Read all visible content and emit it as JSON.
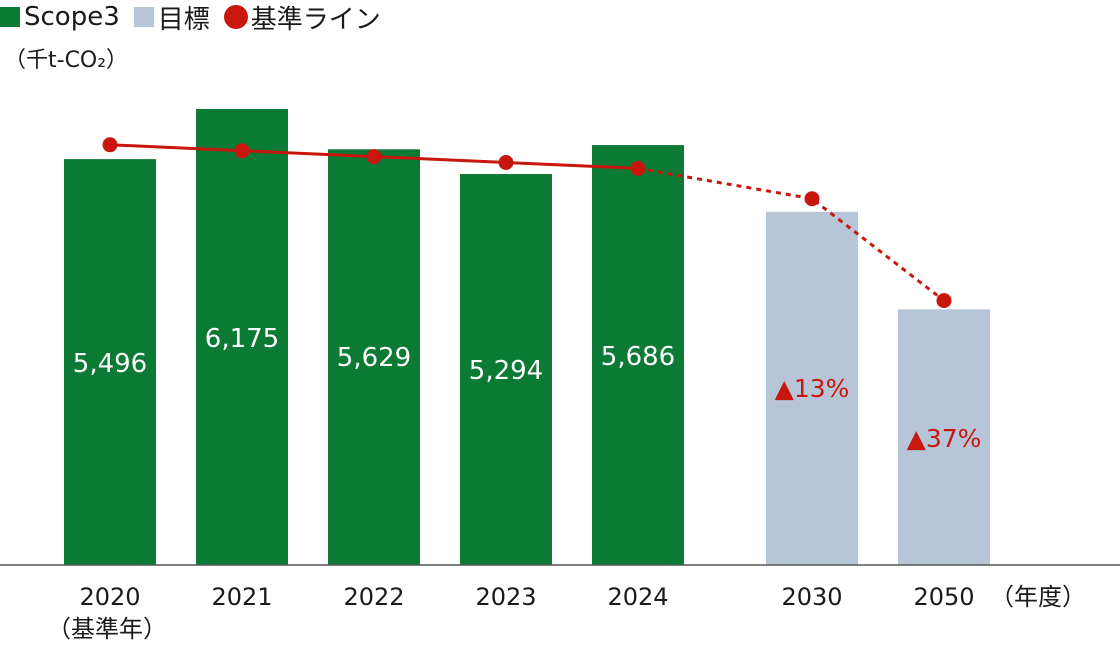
{
  "legend": {
    "scope3": "Scope3",
    "target": "目標",
    "baseline": "基準ライン"
  },
  "unit_label": "（千t-CO₂）",
  "colors": {
    "scope3": "#0a7a35",
    "target": "#b6c6d8",
    "baseline": "#c8170e",
    "axis": "#555555"
  },
  "chart_data": {
    "type": "bar",
    "title": "",
    "xlabel": "",
    "ylabel": "（千t-CO₂）",
    "x_axis_suffix": "（年度）",
    "ylim": [
      0,
      7000
    ],
    "grid": false,
    "legend_position": "top-left",
    "categories": [
      "2020",
      "2021",
      "2022",
      "2023",
      "2024",
      "2030",
      "2050"
    ],
    "category_sublabels": [
      "（基準年）",
      "",
      "",
      "",
      "",
      "",
      ""
    ],
    "series": [
      {
        "name": "Scope3",
        "type": "bar",
        "values": [
          5496,
          6175,
          5629,
          5294,
          5686,
          null,
          null
        ],
        "labels": [
          "5,496",
          "6,175",
          "5,629",
          "5,294",
          "5,686",
          "",
          ""
        ]
      },
      {
        "name": "目標",
        "type": "bar",
        "values": [
          null,
          null,
          null,
          null,
          null,
          4782,
          3462
        ],
        "labels": [
          "",
          "",
          "",
          "",
          "",
          "▲13%",
          "▲37%"
        ]
      },
      {
        "name": "基準ライン",
        "type": "line",
        "values": [
          5690,
          5610,
          5530,
          5450,
          5370,
          4960,
          3580
        ],
        "solid_until_index": 4
      }
    ]
  }
}
